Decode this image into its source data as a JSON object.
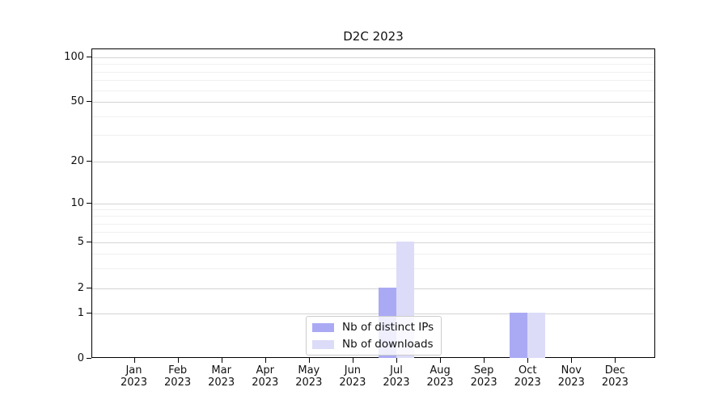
{
  "chart_data": {
    "type": "bar",
    "title": "D2C 2023",
    "categories": [
      "Jan",
      "Feb",
      "Mar",
      "Apr",
      "May",
      "Jun",
      "Jul",
      "Aug",
      "Sep",
      "Oct",
      "Nov",
      "Dec"
    ],
    "category_year": "2023",
    "series": [
      {
        "name": "Nb of distinct IPs",
        "color": "#aaaaf4",
        "values": [
          0,
          0,
          0,
          0,
          0,
          0,
          2,
          0,
          0,
          1,
          0,
          0
        ]
      },
      {
        "name": "Nb of downloads",
        "color": "#dcdcf8",
        "values": [
          0,
          0,
          0,
          0,
          0,
          0,
          5,
          0,
          0,
          1,
          0,
          0
        ]
      }
    ],
    "xlabel": "",
    "ylabel": "",
    "yscale": "symlog",
    "yticks": [
      0,
      1,
      2,
      5,
      10,
      20,
      50,
      100
    ],
    "ylim": [
      0,
      110
    ],
    "grid": "horizontal",
    "legend_position": "lower-center"
  }
}
